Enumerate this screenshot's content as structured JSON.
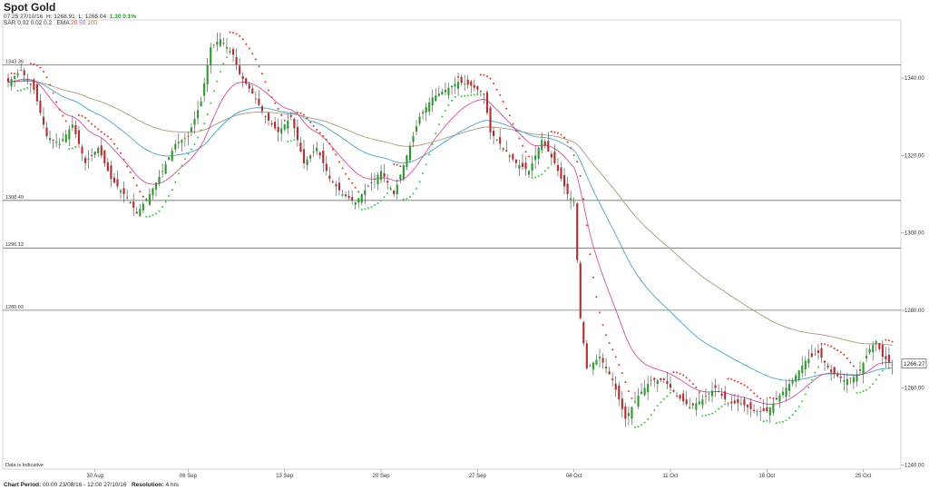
{
  "header": {
    "instrument": "Spot Gold",
    "timestamp": "07:25 27/10/16",
    "high": "H: 1268.91",
    "low": "L: 1265.04",
    "change": "1.30 0.1%",
    "sar_label": "SAR",
    "sar_params": "0.02 0.02 0.2",
    "ema_label": "EMA",
    "ema_params": [
      "20",
      "50",
      "100"
    ]
  },
  "footer": {
    "period_label": "Chart Period:",
    "period_value": "00:00 23/08/16 - 12:00 27/10/16",
    "resolution_label": "Resolution:",
    "resolution_value": "4 hrs"
  },
  "note": "Data is Indicative",
  "colors": {
    "bull": "#2e9a2e",
    "bear": "#b03030",
    "sar_up": "#3cc43c",
    "sar_down": "#e03a1e",
    "ema20": "#d04f9f",
    "ema50": "#4aa3c9",
    "ema100": "#a89b7a",
    "hline": "#555555"
  },
  "chart_data": {
    "type": "candlestick",
    "ylim": [
      1239,
      1355
    ],
    "y_ticks": [
      1340,
      1320,
      1300,
      1280,
      1260,
      1240
    ],
    "y_tick_labels": [
      "1340.00",
      "1320.00",
      "1300.00",
      "1280.00",
      "1260.00",
      "1240.00"
    ],
    "x_ticks": [
      {
        "label": "30 Aug",
        "index": 27
      },
      {
        "label": "06 Sep",
        "index": 56
      },
      {
        "label": "13 Sep",
        "index": 86
      },
      {
        "label": "20 Sep",
        "index": 116
      },
      {
        "label": "27 Sep",
        "index": 146
      },
      {
        "label": "04 Oct",
        "index": 176
      },
      {
        "label": "11 Oct",
        "index": 206
      },
      {
        "label": "18 Oct",
        "index": 236
      },
      {
        "label": "25 Oct",
        "index": 266
      }
    ],
    "horizontal_lines": [
      {
        "value": 1343.36,
        "label": "1343.36"
      },
      {
        "value": 1308.4,
        "label": "1308.40"
      },
      {
        "value": 1296.13,
        "label": "1296.13"
      },
      {
        "value": 1280.03,
        "label": "1280.03"
      }
    ],
    "last_price": "1266.27",
    "anchors": [
      [
        0,
        1339
      ],
      [
        4,
        1342
      ],
      [
        8,
        1337
      ],
      [
        12,
        1325
      ],
      [
        16,
        1323
      ],
      [
        20,
        1328
      ],
      [
        24,
        1318
      ],
      [
        28,
        1322
      ],
      [
        32,
        1314
      ],
      [
        38,
        1308
      ],
      [
        40,
        1305
      ],
      [
        44,
        1310
      ],
      [
        48,
        1316
      ],
      [
        52,
        1323
      ],
      [
        56,
        1325
      ],
      [
        60,
        1334
      ],
      [
        63,
        1348
      ],
      [
        66,
        1350
      ],
      [
        70,
        1346
      ],
      [
        72,
        1341
      ],
      [
        76,
        1336
      ],
      [
        80,
        1330
      ],
      [
        84,
        1326
      ],
      [
        88,
        1330
      ],
      [
        92,
        1318
      ],
      [
        96,
        1322
      ],
      [
        100,
        1314
      ],
      [
        104,
        1310
      ],
      [
        108,
        1308
      ],
      [
        112,
        1312
      ],
      [
        116,
        1316
      ],
      [
        120,
        1310
      ],
      [
        124,
        1320
      ],
      [
        128,
        1330
      ],
      [
        132,
        1335
      ],
      [
        136,
        1337
      ],
      [
        140,
        1339
      ],
      [
        144,
        1338
      ],
      [
        148,
        1336
      ],
      [
        150,
        1326
      ],
      [
        154,
        1322
      ],
      [
        158,
        1318
      ],
      [
        162,
        1316
      ],
      [
        166,
        1324
      ],
      [
        170,
        1318
      ],
      [
        174,
        1310
      ],
      [
        176,
        1308
      ],
      [
        178,
        1278
      ],
      [
        180,
        1265
      ],
      [
        184,
        1268
      ],
      [
        188,
        1262
      ],
      [
        192,
        1252
      ],
      [
        196,
        1258
      ],
      [
        200,
        1262
      ],
      [
        204,
        1262
      ],
      [
        208,
        1258
      ],
      [
        212,
        1255
      ],
      [
        216,
        1257
      ],
      [
        220,
        1260
      ],
      [
        224,
        1256
      ],
      [
        228,
        1256
      ],
      [
        232,
        1254
      ],
      [
        236,
        1254
      ],
      [
        240,
        1258
      ],
      [
        244,
        1262
      ],
      [
        248,
        1267
      ],
      [
        252,
        1269
      ],
      [
        256,
        1264
      ],
      [
        260,
        1262
      ],
      [
        264,
        1263
      ],
      [
        268,
        1270
      ],
      [
        270,
        1272
      ],
      [
        272,
        1268
      ],
      [
        275,
        1266
      ]
    ]
  }
}
